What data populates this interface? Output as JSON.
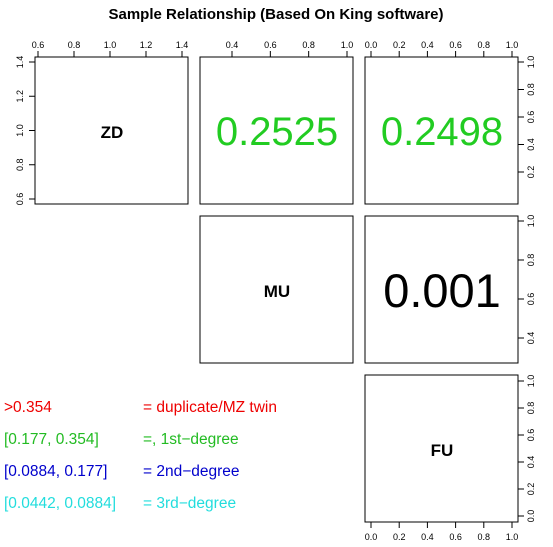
{
  "chart_data": {
    "type": "table",
    "title": "Sample Relationship (Based On King software)",
    "samples": [
      "ZD",
      "MU",
      "FU"
    ],
    "pairs": [
      {
        "row": "ZD",
        "col": "MU",
        "value": "0.2525",
        "color": "#22cc22"
      },
      {
        "row": "ZD",
        "col": "FU",
        "value": "0.2498",
        "color": "#22cc22"
      },
      {
        "row": "MU",
        "col": "FU",
        "value": "0.001",
        "color": "#000000"
      }
    ],
    "axes": {
      "top_ZD": [
        "0.6",
        "0.8",
        "1.0",
        "1.2",
        "1.4"
      ],
      "top_MU": [
        "0.4",
        "0.6",
        "0.8",
        "1.0"
      ],
      "top_FU": [
        "0.0",
        "0.2",
        "0.4",
        "0.6",
        "0.8",
        "1.0"
      ],
      "left_ZD": [
        "0.6",
        "0.8",
        "1.0",
        "1.2",
        "1.4"
      ],
      "right_FU_row1": [
        "0.2",
        "0.4",
        "0.6",
        "0.8",
        "1.0"
      ],
      "right_FU_row2": [
        "0.4",
        "0.6",
        "0.8",
        "1.0"
      ],
      "right_FU_row3": [
        "0.0",
        "0.2",
        "0.4",
        "0.6",
        "0.8",
        "1.0"
      ],
      "bottom_FU": [
        "0.0",
        "0.2",
        "0.4",
        "0.6",
        "0.8",
        "1.0"
      ]
    },
    "legend": [
      {
        "range": ">0.354",
        "meaning": "= duplicate/MZ twin",
        "color": "#ee0000"
      },
      {
        "range": "[0.177, 0.354]",
        "meaning": "=, 1st−degree",
        "color": "#22bb22"
      },
      {
        "range": "[0.0884, 0.177]",
        "meaning": "= 2nd−degree",
        "color": "#0000cc"
      },
      {
        "range": "[0.0442, 0.0884]",
        "meaning": "= 3rd−degree",
        "color": "#22dddd"
      }
    ]
  }
}
